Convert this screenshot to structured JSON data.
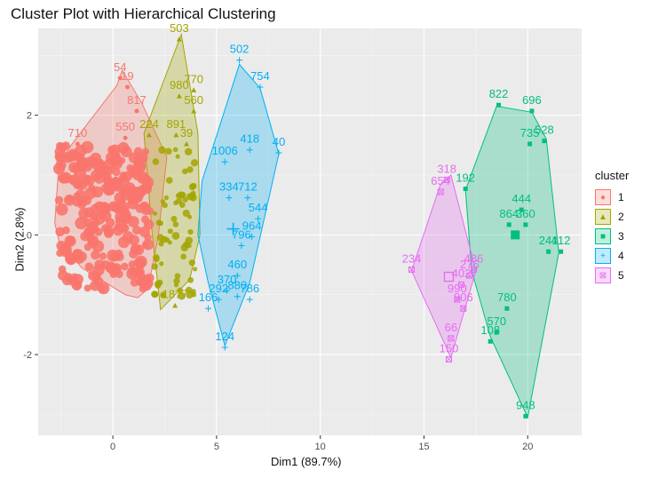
{
  "chart_data": {
    "type": "scatter",
    "title": "Cluster Plot with Hierarchical Clustering",
    "xlabel": "Dim1 (89.7%)",
    "ylabel": "Dim2 (2.8%)",
    "xlim": [
      -3.6,
      22.6
    ],
    "ylim": [
      -3.35,
      3.45
    ],
    "xticks": [
      0,
      5,
      10,
      15,
      20
    ],
    "yticks": [
      -2,
      0,
      2
    ],
    "legend_title": "cluster",
    "legend_position": "right",
    "grid": true,
    "clusters": [
      {
        "name": "1",
        "color": "#F8766D",
        "hull": [
          [
            -2.8,
            0.2
          ],
          [
            -2.6,
            1.2
          ],
          [
            -1.9,
            1.55
          ],
          [
            0.2,
            2.5
          ],
          [
            0.45,
            2.75
          ],
          [
            1.4,
            2.2
          ],
          [
            2.6,
            1.3
          ],
          [
            2.2,
            0.0
          ],
          [
            1.7,
            -0.9
          ],
          [
            1.2,
            -1.05
          ],
          [
            0.6,
            -1.0
          ],
          [
            -1.5,
            -0.55
          ],
          [
            -2.6,
            -0.1
          ]
        ],
        "labels": [
          {
            "text": "54",
            "x": 0.35,
            "y": 2.8
          },
          {
            "text": "19",
            "x": 0.7,
            "y": 2.65
          },
          {
            "text": "817",
            "x": 1.15,
            "y": 2.25
          },
          {
            "text": "710",
            "x": -1.7,
            "y": 1.7
          },
          {
            "text": "550",
            "x": 0.6,
            "y": 1.8
          }
        ],
        "centroid": {
          "x": -0.5,
          "y": 0.3
        }
      },
      {
        "name": "2",
        "color": "#A3A500",
        "hull": [
          [
            1.5,
            1.7
          ],
          [
            3.3,
            3.35
          ],
          [
            4.1,
            1.7
          ],
          [
            4.2,
            0.0
          ],
          [
            3.7,
            -0.75
          ],
          [
            2.3,
            -1.25
          ],
          [
            1.9,
            0.0
          ]
        ],
        "labels": [
          {
            "text": "503",
            "x": 3.2,
            "y": 3.45
          },
          {
            "text": "770",
            "x": 3.9,
            "y": 2.6
          },
          {
            "text": "980",
            "x": 3.2,
            "y": 2.5
          },
          {
            "text": "560",
            "x": 3.9,
            "y": 2.25
          },
          {
            "text": "224",
            "x": 1.75,
            "y": 1.85
          },
          {
            "text": "891",
            "x": 3.05,
            "y": 1.85
          },
          {
            "text": "39",
            "x": 3.55,
            "y": 1.7
          },
          {
            "text": "1877",
            "x": 3.0,
            "y": -1.0
          }
        ],
        "centroid": {
          "x": 3.0,
          "y": 0.6
        }
      },
      {
        "name": "3",
        "color": "#00BF7D",
        "hull": [
          [
            17.0,
            0.75
          ],
          [
            18.5,
            2.15
          ],
          [
            20.2,
            2.05
          ],
          [
            20.9,
            1.6
          ],
          [
            21.5,
            -0.3
          ],
          [
            20.0,
            -3.05
          ],
          [
            18.2,
            -1.7
          ],
          [
            17.3,
            -0.6
          ]
        ],
        "labels": [
          {
            "text": "822",
            "x": 18.6,
            "y": 2.35
          },
          {
            "text": "696",
            "x": 20.2,
            "y": 2.25
          },
          {
            "text": "735",
            "x": 20.1,
            "y": 1.7
          },
          {
            "text": "528",
            "x": 20.8,
            "y": 1.75
          },
          {
            "text": "192",
            "x": 17.0,
            "y": 0.95
          },
          {
            "text": "444",
            "x": 19.7,
            "y": 0.6
          },
          {
            "text": "864",
            "x": 19.1,
            "y": 0.35
          },
          {
            "text": "360",
            "x": 19.9,
            "y": 0.35
          },
          {
            "text": "241",
            "x": 21.0,
            "y": -0.1
          },
          {
            "text": "412",
            "x": 21.6,
            "y": -0.1
          },
          {
            "text": "780",
            "x": 19.0,
            "y": -1.05
          },
          {
            "text": "570",
            "x": 18.5,
            "y": -1.45
          },
          {
            "text": "108",
            "x": 18.2,
            "y": -1.6
          },
          {
            "text": "948",
            "x": 19.9,
            "y": -2.85
          }
        ],
        "centroid": {
          "x": 19.4,
          "y": 0.0
        }
      },
      {
        "name": "4",
        "color": "#00B0F6",
        "hull": [
          [
            4.3,
            0.9
          ],
          [
            6.1,
            2.85
          ],
          [
            7.1,
            2.45
          ],
          [
            8.0,
            1.35
          ],
          [
            6.6,
            -0.8
          ],
          [
            5.4,
            -1.85
          ],
          [
            4.6,
            -0.8
          ],
          [
            4.1,
            0.0
          ]
        ],
        "labels": [
          {
            "text": "502",
            "x": 6.1,
            "y": 3.1
          },
          {
            "text": "754",
            "x": 7.1,
            "y": 2.65
          },
          {
            "text": "418",
            "x": 6.6,
            "y": 1.6
          },
          {
            "text": "40",
            "x": 8.0,
            "y": 1.55
          },
          {
            "text": "1006",
            "x": 5.4,
            "y": 1.4
          },
          {
            "text": "334",
            "x": 5.6,
            "y": 0.8
          },
          {
            "text": "712",
            "x": 6.5,
            "y": 0.8
          },
          {
            "text": "544",
            "x": 7.0,
            "y": 0.45
          },
          {
            "text": "964",
            "x": 6.7,
            "y": 0.15
          },
          {
            "text": "796",
            "x": 6.2,
            "y": 0.0
          },
          {
            "text": "460",
            "x": 6.0,
            "y": -0.5
          },
          {
            "text": "370",
            "x": 5.5,
            "y": -0.75
          },
          {
            "text": "292",
            "x": 5.1,
            "y": -0.9
          },
          {
            "text": "880",
            "x": 6.0,
            "y": -0.85
          },
          {
            "text": "786",
            "x": 6.6,
            "y": -0.9
          },
          {
            "text": "166",
            "x": 4.6,
            "y": -1.05
          },
          {
            "text": "124",
            "x": 5.4,
            "y": -1.7
          }
        ],
        "centroid": {
          "x": 5.8,
          "y": 0.1
        }
      },
      {
        "name": "5",
        "color": "#E76BF3",
        "hull": [
          [
            14.4,
            -0.6
          ],
          [
            15.8,
            0.85
          ],
          [
            16.3,
            1.0
          ],
          [
            17.5,
            -0.6
          ],
          [
            16.3,
            -2.05
          ]
        ],
        "labels": [
          {
            "text": "318",
            "x": 16.1,
            "y": 1.1
          },
          {
            "text": "654",
            "x": 15.8,
            "y": 0.9
          },
          {
            "text": "234",
            "x": 14.4,
            "y": -0.4
          },
          {
            "text": "486",
            "x": 17.4,
            "y": -0.4
          },
          {
            "text": "276",
            "x": 17.2,
            "y": -0.5
          },
          {
            "text": "402",
            "x": 16.8,
            "y": -0.65
          },
          {
            "text": "990",
            "x": 16.6,
            "y": -0.9
          },
          {
            "text": "906",
            "x": 16.9,
            "y": -1.05
          },
          {
            "text": "66",
            "x": 16.3,
            "y": -1.55
          },
          {
            "text": "150",
            "x": 16.2,
            "y": -1.9
          }
        ],
        "centroid": {
          "x": 16.2,
          "y": -0.7
        }
      }
    ]
  }
}
